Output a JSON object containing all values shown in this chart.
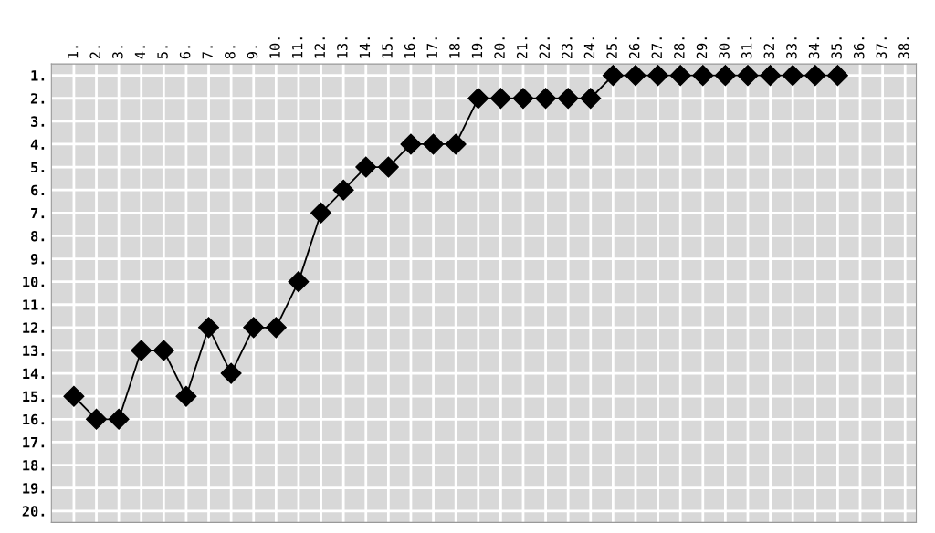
{
  "chart_data": {
    "type": "line",
    "categories": [
      "1.",
      "2.",
      "3.",
      "4.",
      "5.",
      "6.",
      "7.",
      "8.",
      "9.",
      "10.",
      "11.",
      "12.",
      "13.",
      "14.",
      "15.",
      "16.",
      "17.",
      "18.",
      "19.",
      "20.",
      "21.",
      "22.",
      "23.",
      "24.",
      "25.",
      "26.",
      "27.",
      "28.",
      "29.",
      "30.",
      "31.",
      "32.",
      "33.",
      "34.",
      "35.",
      "36.",
      "37.",
      "38."
    ],
    "series": [
      {
        "color": "#000000",
        "values": [
          15,
          16,
          16,
          13,
          13,
          15,
          12,
          14,
          12,
          12,
          10,
          7,
          6,
          5,
          5,
          4,
          4,
          4,
          2,
          2,
          2,
          2,
          2,
          2,
          1,
          1,
          1,
          1,
          1,
          1,
          1,
          1,
          1,
          1,
          1,
          null,
          null,
          null
        ]
      }
    ],
    "ylim": [
      20.5,
      0.5
    ],
    "yticks": [
      {
        "value": 1,
        "label": "1."
      },
      {
        "value": 2,
        "label": "2."
      },
      {
        "value": 3,
        "label": "3."
      },
      {
        "value": 4,
        "label": "4."
      },
      {
        "value": 5,
        "label": "5."
      },
      {
        "value": 6,
        "label": "6."
      },
      {
        "value": 7,
        "label": "7."
      },
      {
        "value": 8,
        "label": "8."
      },
      {
        "value": 9,
        "label": "9."
      },
      {
        "value": 10,
        "label": "10."
      },
      {
        "value": 11,
        "label": "11."
      },
      {
        "value": 12,
        "label": "12."
      },
      {
        "value": 13,
        "label": "13."
      },
      {
        "value": 14,
        "label": "14."
      },
      {
        "value": 15,
        "label": "15."
      },
      {
        "value": 16,
        "label": "16."
      },
      {
        "value": 17,
        "label": "17."
      },
      {
        "value": 18,
        "label": "18."
      },
      {
        "value": 19,
        "label": "19."
      },
      {
        "value": 20,
        "label": "20."
      }
    ],
    "grid": true,
    "marker": "diamond",
    "line_style": "solid"
  }
}
